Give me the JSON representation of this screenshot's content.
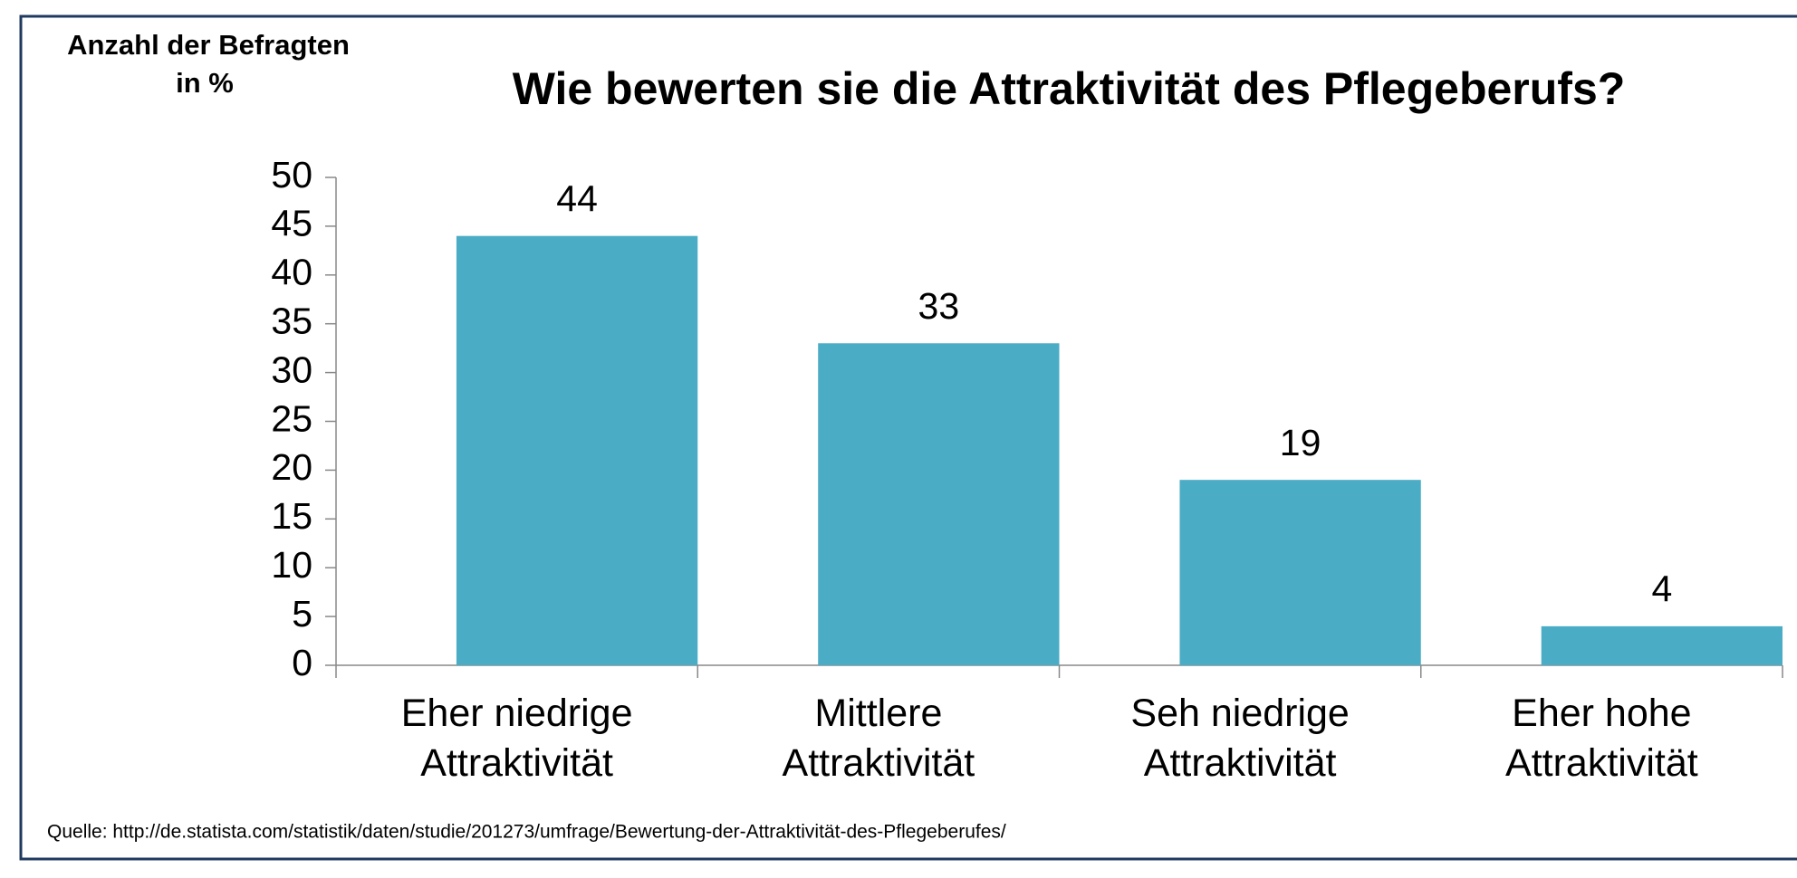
{
  "chart_data": {
    "type": "bar",
    "title": "Wie bewerten sie die Attraktivität des Pflegeberufs?",
    "y_label": [
      "Anzahl der Befragten",
      "in %"
    ],
    "categories": [
      "Eher niedrige Attraktivität",
      "Mittlere Attraktivität",
      "Seh niedrige Attraktivität",
      "Eher hohe Attraktivität"
    ],
    "values": [
      44,
      33,
      19,
      4
    ],
    "color": "#4bacc6",
    "ylim": [
      0,
      50
    ],
    "yticks": [
      0,
      5,
      10,
      15,
      20,
      25,
      30,
      35,
      40,
      45,
      50
    ],
    "grid": false,
    "source": "Quelle: http://de.statista.com/statistik/daten/studie/201273/umfrage/Bewertung-der-Attraktivität-des-Pflegeberufes/"
  }
}
